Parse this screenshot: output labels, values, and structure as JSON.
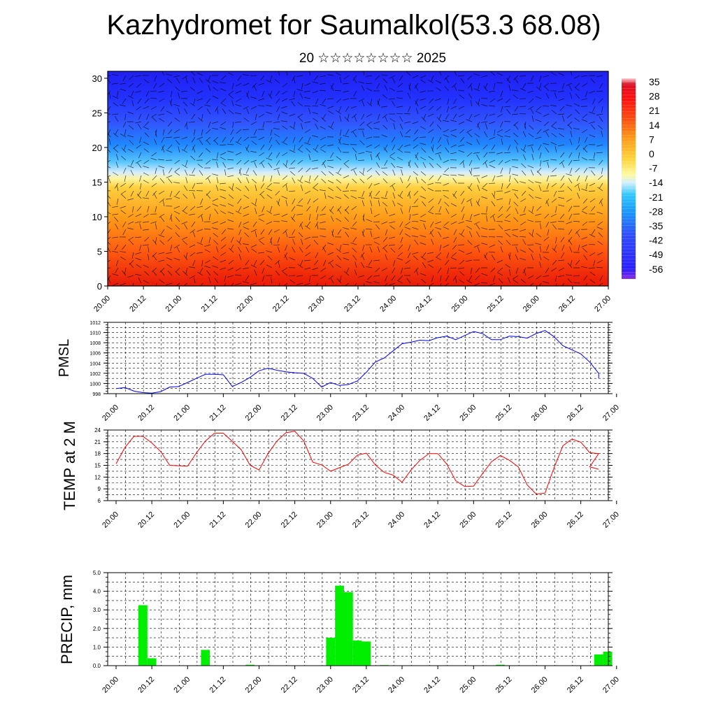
{
  "title": "Kazhydromet for Saumalkol(53.3 68.08)",
  "subtitle": "20 ☆☆☆☆☆☆☆☆ 2025",
  "x_tick_labels": [
    "20.00",
    "20.12",
    "21.00",
    "21.12",
    "22.00",
    "22.12",
    "23.00",
    "23.12",
    "24.00",
    "24.12",
    "25.00",
    "25.12",
    "26.00",
    "26.12",
    "27.00"
  ],
  "colors": {
    "pmsl_line": "#0000ff",
    "temp_line": "#ff0000",
    "precip_bar": "#00ee00"
  },
  "chart_data": [
    {
      "type": "heatmap",
      "name": "cross-section",
      "y_ticks": [
        "0",
        "5",
        "10",
        "15",
        "20",
        "25",
        "30"
      ],
      "ylim": [
        0,
        31
      ],
      "x_range": [
        0,
        14
      ],
      "colorbar_labels": [
        "35",
        "28",
        "21",
        "14",
        "7",
        "0",
        "-7",
        "-14",
        "-21",
        "-28",
        "-35",
        "-42",
        "-49",
        "-56"
      ],
      "colorbar_range": [
        -63,
        42
      ],
      "surface_warm_cores_x": [
        3.4,
        5.2,
        9.8,
        13.3
      ],
      "overlay": "wind barbs"
    },
    {
      "type": "line",
      "ylabel": "PMSL",
      "ylim": [
        998,
        1012
      ],
      "y_ticks": [
        "998",
        "1000",
        "1002",
        "1004",
        "1006",
        "1008",
        "1010",
        "1012"
      ],
      "x": [
        0,
        0.25,
        0.5,
        0.75,
        1,
        1.25,
        1.5,
        1.75,
        2,
        2.25,
        2.5,
        2.75,
        3,
        3.25,
        3.5,
        3.75,
        4,
        4.25,
        4.5,
        4.75,
        5,
        5.25,
        5.5,
        5.75,
        6,
        6.25,
        6.5,
        6.75,
        7,
        7.25,
        7.5,
        7.75,
        8,
        8.25,
        8.5,
        8.75,
        9,
        9.25,
        9.5,
        9.75,
        10,
        10.25,
        10.5,
        10.75,
        11,
        11.25,
        11.5,
        11.75,
        12,
        12.25,
        12.5,
        12.75,
        13,
        13.25,
        13.5
      ],
      "values": [
        999.0,
        999.2,
        998.5,
        998.2,
        998.1,
        998.4,
        999.3,
        999.4,
        1000.2,
        1001.0,
        1001.8,
        1001.8,
        1001.7,
        999.4,
        1000.2,
        1001.2,
        1002.5,
        1003.0,
        1002.6,
        1002.3,
        1002.1,
        1002.0,
        1001.0,
        999.3,
        1000.2,
        999.6,
        999.8,
        1000.5,
        1002.2,
        1004.2,
        1005.0,
        1006.4,
        1007.8,
        1008.1,
        1008.5,
        1008.4,
        1009.0,
        1009.3,
        1008.6,
        1009.4,
        1010.2,
        1009.8,
        1008.6,
        1008.6,
        1009.3,
        1009.2,
        1008.9,
        1009.8,
        1010.4,
        1009.2,
        1007.4,
        1006.6,
        1005.8,
        1004.2,
        1002.0
      ],
      "extra_point": [
        13.5,
        1001.0
      ]
    },
    {
      "type": "line",
      "ylabel": "TEMP at 2 M",
      "ylim": [
        6,
        24
      ],
      "y_ticks": [
        "6",
        "9",
        "12",
        "15",
        "18",
        "21",
        "24"
      ],
      "x": [
        0,
        0.25,
        0.5,
        0.75,
        1,
        1.25,
        1.5,
        1.75,
        2,
        2.25,
        2.5,
        2.75,
        3,
        3.25,
        3.5,
        3.75,
        4,
        4.25,
        4.5,
        4.75,
        5,
        5.25,
        5.5,
        5.75,
        6,
        6.25,
        6.5,
        6.75,
        7,
        7.25,
        7.5,
        7.75,
        8,
        8.25,
        8.5,
        8.75,
        9,
        9.25,
        9.5,
        9.75,
        10,
        10.25,
        10.5,
        10.75,
        11,
        11.25,
        11.5,
        11.75,
        12,
        12.25,
        12.5,
        12.75,
        13,
        13.25,
        13.5
      ],
      "values": [
        15.4,
        19.6,
        22.4,
        22.4,
        20.7,
        18.5,
        15.0,
        14.9,
        14.8,
        18.2,
        21.2,
        23.2,
        23.2,
        21.1,
        19.0,
        15.0,
        13.8,
        18.0,
        21.2,
        23.3,
        23.7,
        21.2,
        15.8,
        15.1,
        13.5,
        14.4,
        15.3,
        17.6,
        18.1,
        15.1,
        13.2,
        12.5,
        10.7,
        13.8,
        16.3,
        18.0,
        18.0,
        15.3,
        11.1,
        9.6,
        9.7,
        12.9,
        15.9,
        17.5,
        16.3,
        14.6,
        10.0,
        7.7,
        7.9,
        14.4,
        20.0,
        21.7,
        20.9,
        18.2,
        18.0
      ],
      "tail": [
        [
          13.25,
          14.6
        ],
        [
          13.5,
          14.0
        ]
      ]
    },
    {
      "type": "bar",
      "ylabel": "PRECIP, mm",
      "ylim": [
        0,
        5
      ],
      "y_ticks": [
        "0.0",
        "1.0",
        "2.0",
        "3.0",
        "4.0",
        "5.0"
      ],
      "bar_width": 0.25,
      "x": [
        0.75,
        1.0,
        2.5,
        3.75,
        6.0,
        6.25,
        6.5,
        6.75,
        7.0,
        7.5,
        10.75,
        13.5,
        13.75
      ],
      "values": [
        3.25,
        0.4,
        0.85,
        0.05,
        1.5,
        4.3,
        3.95,
        1.35,
        1.3,
        0.03,
        0.05,
        0.6,
        0.75
      ]
    }
  ]
}
